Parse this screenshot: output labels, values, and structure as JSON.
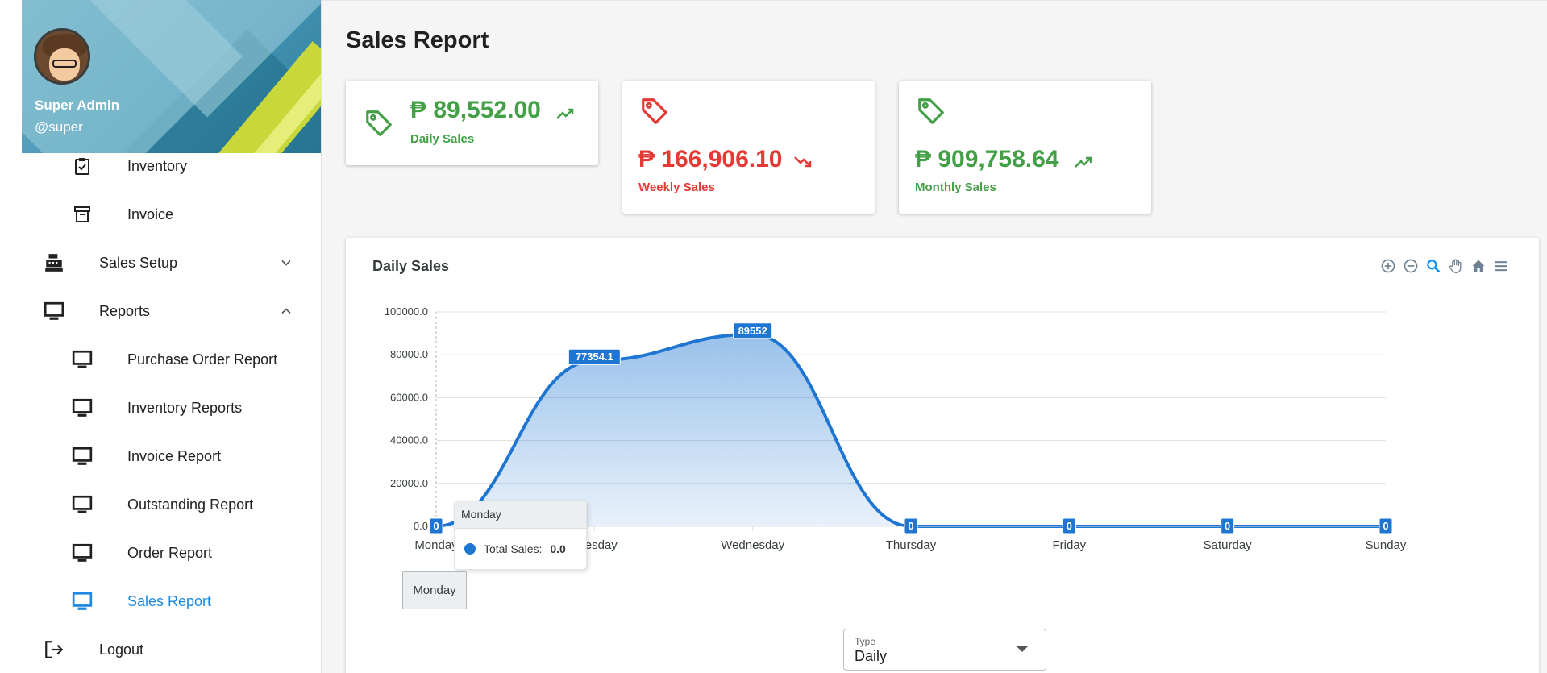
{
  "profile": {
    "name": "Super Admin",
    "username": "@super"
  },
  "sidebar": {
    "items": [
      {
        "label": "Inventory",
        "icon": "clipboard-check-icon"
      },
      {
        "label": "Invoice",
        "icon": "archive-icon"
      },
      {
        "label": "Sales Setup",
        "icon": "cash-register-icon"
      },
      {
        "label": "Reports",
        "icon": "monitor-icon"
      },
      {
        "label": "Purchase Order Report",
        "icon": "monitor-icon"
      },
      {
        "label": "Inventory Reports",
        "icon": "monitor-icon"
      },
      {
        "label": "Invoice Report",
        "icon": "monitor-icon"
      },
      {
        "label": "Outstanding Report",
        "icon": "monitor-icon"
      },
      {
        "label": "Order Report",
        "icon": "monitor-icon"
      },
      {
        "label": "Sales Report",
        "icon": "monitor-icon"
      },
      {
        "label": "Logout",
        "icon": "logout-icon"
      }
    ]
  },
  "page": {
    "title": "Sales Report"
  },
  "cards": {
    "daily": {
      "amount": "₱ 89,552.00",
      "label": "Daily Sales",
      "trend": "up",
      "color": "#43a047"
    },
    "weekly": {
      "amount": "₱ 166,906.10",
      "label": "Weekly Sales",
      "trend": "down",
      "color": "#e53935"
    },
    "monthly": {
      "amount": "₱ 909,758.64",
      "label": "Monthly Sales",
      "trend": "up",
      "color": "#43a047"
    }
  },
  "chart": {
    "title": "Daily Sales",
    "tooltip": {
      "header": "Monday",
      "series": "Total Sales:",
      "value": "0.0"
    },
    "xaxis_tooltip": "Monday"
  },
  "type_select": {
    "label": "Type",
    "value": "Daily"
  },
  "chart_data": {
    "type": "area",
    "title": "Daily Sales",
    "categories": [
      "Monday",
      "Tuesday",
      "Wednesday",
      "Thursday",
      "Friday",
      "Saturday",
      "Sunday"
    ],
    "series": [
      {
        "name": "Total Sales",
        "values": [
          0,
          77354.1,
          89552,
          0,
          0,
          0,
          0
        ]
      }
    ],
    "data_labels": [
      "0",
      "77354.1",
      "89552",
      "0",
      "0",
      "0",
      "0"
    ],
    "yticks": [
      "0.0",
      "20000.0",
      "40000.0",
      "60000.0",
      "80000.0",
      "100000.0"
    ],
    "ylim": [
      0,
      100000
    ],
    "grid": true,
    "color": "#1e76d2"
  }
}
